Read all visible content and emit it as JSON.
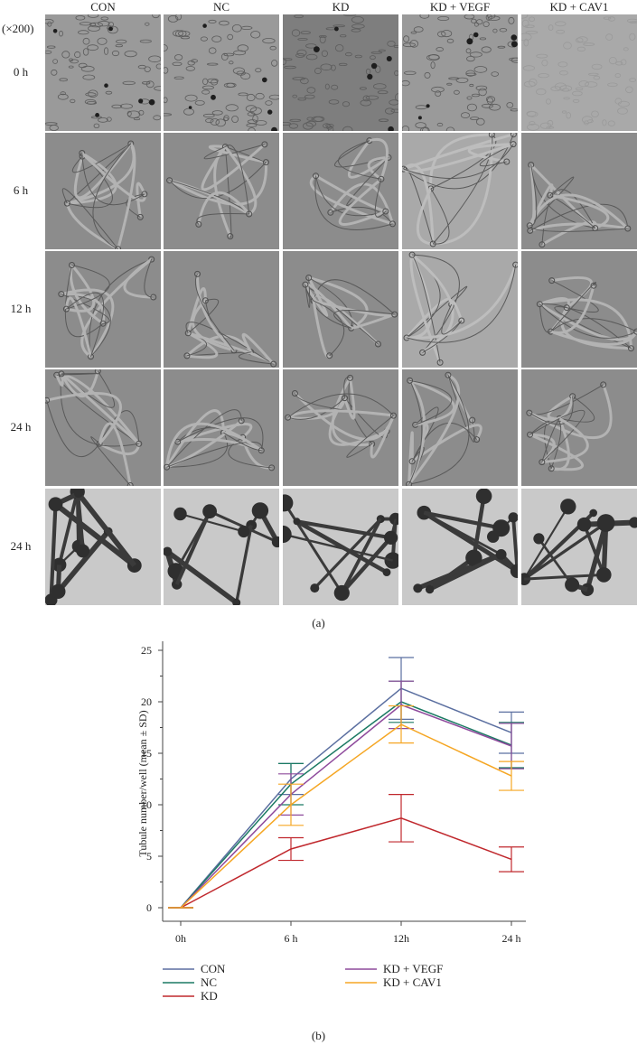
{
  "figure": {
    "columns": [
      "CON",
      "NC",
      "KD",
      "KD + VEGF",
      "KD + CAV1"
    ],
    "magnification": "(×200)",
    "rows": [
      "0 h",
      "6 h",
      "12 h",
      "24 h",
      "24 h"
    ],
    "row_styles": [
      "cells",
      "network",
      "network",
      "network",
      "stained"
    ],
    "caption_a": "(a)",
    "caption_b": "(b)"
  },
  "chart_data": {
    "type": "line",
    "categories": [
      "0h",
      "6 h",
      "12h",
      "24 h"
    ],
    "ylabel": "Tubule number/well (mean ± SD)",
    "xlabel": "",
    "ylim": [
      0,
      25
    ],
    "yticks": [
      0,
      5,
      10,
      15,
      20,
      25
    ],
    "grid": false,
    "legend_position": "bottom",
    "series": [
      {
        "name": "CON",
        "color": "#5b6fa0",
        "values": [
          0,
          12.5,
          21.3,
          17.0
        ],
        "sd": [
          0,
          1.5,
          3.0,
          2.0
        ]
      },
      {
        "name": "NC",
        "color": "#1b7a63",
        "values": [
          0,
          12.0,
          20.0,
          15.8
        ],
        "sd": [
          0,
          2.0,
          2.0,
          2.2
        ]
      },
      {
        "name": "KD",
        "color": "#c0282d",
        "values": [
          0,
          5.7,
          8.7,
          4.7
        ],
        "sd": [
          0,
          1.1,
          2.3,
          1.2
        ]
      },
      {
        "name": "KD + VEGF",
        "color": "#8e4a9c",
        "values": [
          0,
          11.0,
          19.7,
          15.7
        ],
        "sd": [
          0,
          2.0,
          2.3,
          2.2
        ]
      },
      {
        "name": "KD + CAV1",
        "color": "#f5a623",
        "values": [
          0,
          10.0,
          17.8,
          12.8
        ],
        "sd": [
          0,
          2.0,
          1.8,
          1.4
        ]
      }
    ]
  }
}
